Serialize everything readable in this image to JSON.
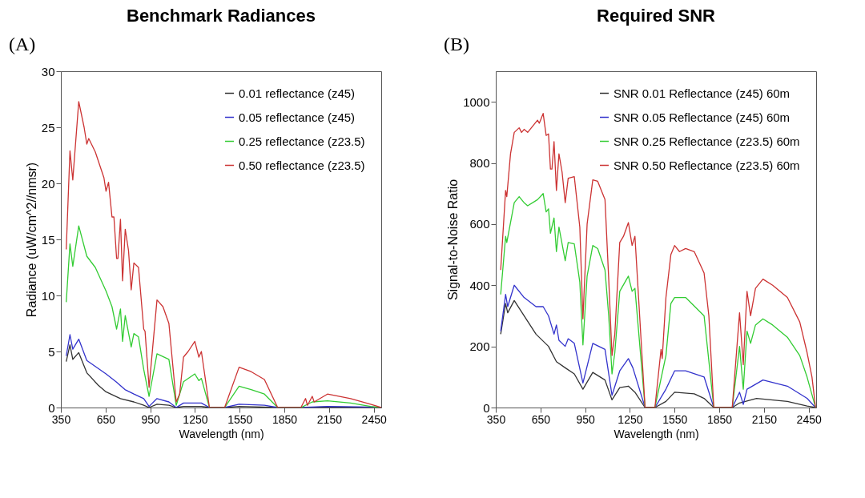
{
  "chart_data": [
    {
      "type": "line",
      "title": "Benchmark Radiances",
      "xlabel": "Wavelength (nm)",
      "ylabel": "Radiance (uW/cm^2//nmsr)",
      "annotations": [
        "(A)"
      ],
      "xlim": [
        350,
        2500
      ],
      "xticks": [
        350,
        650,
        950,
        1250,
        1550,
        1850,
        2150,
        2450
      ],
      "ylim": [
        0,
        30
      ],
      "yticks": [
        0,
        5,
        10,
        15,
        20,
        25,
        30
      ],
      "grid": false,
      "legend": "top right",
      "series": [
        {
          "name": "0.01 reflectance (z45)",
          "color": "#333333",
          "x": [
            386,
            411,
            430,
            470,
            524,
            600,
            653,
            750,
            840,
            906,
            942,
            995,
            1075,
            1124,
            1173,
            1293,
            1347,
            1449,
            1546,
            1805,
            1961,
            2139,
            2500
          ],
          "values": [
            4.1,
            5.6,
            4.3,
            4.9,
            3.1,
            2,
            1.4,
            0.8,
            0.5,
            0.2,
            0,
            0.3,
            0.2,
            0,
            0.1,
            0.1,
            0,
            0,
            0.1,
            0,
            0,
            0.05,
            0
          ]
        },
        {
          "name": "0.05 reflectance (z45)",
          "color": "#3333cc",
          "x": [
            386,
            411,
            430,
            470,
            524,
            653,
            720,
            780,
            840,
            906,
            942,
            995,
            1075,
            1124,
            1173,
            1293,
            1347,
            1449,
            1546,
            1716,
            1805,
            1961,
            2139,
            2428,
            2500
          ],
          "values": [
            4.6,
            6.5,
            5.2,
            6.1,
            4.2,
            3,
            2.3,
            1.6,
            1.2,
            0.8,
            0.1,
            0.8,
            0.5,
            0,
            0.4,
            0.4,
            0,
            0,
            0.3,
            0.2,
            0,
            0,
            0.1,
            0.05,
            0
          ]
        },
        {
          "name": "0.25 reflectance (z23.5)",
          "color": "#33cc33",
          "x": [
            386,
            411,
            430,
            470,
            524,
            581,
            653,
            693,
            724,
            750,
            764,
            782,
            822,
            840,
            871,
            906,
            942,
            995,
            1075,
            1124,
            1173,
            1249,
            1276,
            1293,
            1347,
            1449,
            1546,
            1627,
            1716,
            1805,
            1961,
            2037,
            2139,
            2295,
            2428,
            2500
          ],
          "values": [
            9.4,
            14.6,
            12.6,
            16.2,
            13.5,
            12.5,
            10.4,
            9,
            7,
            8.8,
            5.9,
            8.2,
            5.4,
            6.6,
            6.3,
            3.4,
            1,
            4.8,
            4.3,
            0.2,
            2.3,
            3,
            2.4,
            2.6,
            0,
            0,
            1.9,
            1.6,
            1.2,
            0,
            0,
            0.5,
            0.6,
            0.4,
            0.1,
            0
          ]
        },
        {
          "name": "0.50 reflectance (z23.5)",
          "color": "#cc3333",
          "x": [
            386,
            411,
            430,
            470,
            506,
            524,
            537,
            581,
            639,
            653,
            670,
            693,
            706,
            724,
            733,
            750,
            764,
            782,
            804,
            822,
            840,
            871,
            906,
            915,
            942,
            995,
            1035,
            1075,
            1124,
            1147,
            1173,
            1204,
            1249,
            1276,
            1293,
            1347,
            1449,
            1546,
            1627,
            1716,
            1805,
            1961,
            1992,
            2005,
            2037,
            2050,
            2139,
            2295,
            2428,
            2500
          ],
          "values": [
            14.1,
            22.9,
            20.3,
            27.3,
            25,
            23.5,
            24,
            22.8,
            20.5,
            19.3,
            20.1,
            17,
            17,
            13.3,
            13.3,
            16.8,
            11.3,
            15.9,
            14,
            10.5,
            12.9,
            12.5,
            7,
            6.8,
            1.8,
            9.6,
            9,
            7.5,
            0.5,
            1.2,
            4.5,
            5,
            5.9,
            4.5,
            5,
            0,
            0,
            3.6,
            3.2,
            2.5,
            0,
            0,
            0.8,
            0.2,
            1,
            0.5,
            1.2,
            0.8,
            0.3,
            0
          ]
        }
      ]
    },
    {
      "type": "line",
      "title": "Required SNR",
      "xlabel": "Wavelength (nm)",
      "ylabel": "Signal-to-Noise Ratio",
      "annotations": [
        "(B)"
      ],
      "xlim": [
        350,
        2500
      ],
      "xticks": [
        350,
        650,
        950,
        1250,
        1550,
        1850,
        2150,
        2450
      ],
      "ylim": [
        0,
        1100
      ],
      "yticks": [
        0,
        200,
        400,
        600,
        800,
        1000
      ],
      "grid": false,
      "legend": "top right",
      "series": [
        {
          "name": "SNR 0.01 Reflectance (z45) 60m",
          "color": "#333333",
          "x": [
            383,
            416,
            430,
            474,
            540,
            620,
            704,
            757,
            816,
            877,
            935,
            1001,
            1083,
            1130,
            1182,
            1240,
            1284,
            1352,
            1418,
            1492,
            1550,
            1682,
            1748,
            1813,
            1937,
            1986,
            2100,
            2307,
            2439,
            2496
          ],
          "values": [
            240,
            340,
            310,
            350,
            300,
            240,
            200,
            150,
            130,
            110,
            60,
            115,
            90,
            25,
            65,
            70,
            50,
            0,
            0,
            20,
            50,
            45,
            30,
            0,
            0,
            15,
            30,
            20,
            5,
            0
          ]
        },
        {
          "name": "SNR 0.05 Reflectance (z45) 60m",
          "color": "#3333cc",
          "x": [
            383,
            416,
            430,
            474,
            540,
            620,
            668,
            704,
            741,
            757,
            774,
            816,
            836,
            877,
            935,
            1001,
            1083,
            1130,
            1182,
            1240,
            1270,
            1352,
            1418,
            1492,
            1550,
            1624,
            1748,
            1813,
            1937,
            1986,
            2011,
            2036,
            2143,
            2307,
            2439,
            2496
          ],
          "values": [
            250,
            370,
            330,
            400,
            360,
            330,
            330,
            300,
            240,
            270,
            220,
            200,
            225,
            210,
            80,
            210,
            190,
            40,
            120,
            160,
            130,
            0,
            0,
            60,
            120,
            120,
            100,
            0,
            0,
            50,
            10,
            60,
            90,
            70,
            30,
            0
          ]
        },
        {
          "name": "SNR 0.25 Reflectance (z23.5) 60m",
          "color": "#33cc33",
          "x": [
            383,
            416,
            424,
            474,
            507,
            540,
            564,
            630,
            668,
            688,
            704,
            717,
            741,
            757,
            774,
            816,
            836,
            877,
            914,
            935,
            963,
            1001,
            1034,
            1083,
            1108,
            1130,
            1149,
            1182,
            1240,
            1265,
            1284,
            1352,
            1418,
            1492,
            1525,
            1550,
            1624,
            1748,
            1813,
            1937,
            1986,
            2011,
            2036,
            2060,
            2093,
            2143,
            2208,
            2307,
            2390,
            2439,
            2496
          ],
          "values": [
            370,
            560,
            540,
            670,
            690,
            670,
            660,
            680,
            700,
            640,
            650,
            570,
            620,
            510,
            590,
            480,
            540,
            535,
            410,
            205,
            430,
            530,
            520,
            450,
            300,
            110,
            180,
            380,
            430,
            380,
            390,
            0,
            0,
            170,
            340,
            360,
            360,
            300,
            0,
            0,
            200,
            60,
            250,
            210,
            270,
            290,
            270,
            230,
            170,
            100,
            0
          ]
        },
        {
          "name": "SNR 0.50 Reflectance (z23.5) 60m",
          "color": "#cc3333",
          "x": [
            383,
            416,
            424,
            449,
            474,
            507,
            523,
            540,
            564,
            605,
            630,
            642,
            668,
            688,
            704,
            717,
            727,
            741,
            757,
            774,
            795,
            816,
            836,
            877,
            914,
            935,
            963,
            1001,
            1034,
            1083,
            1108,
            1130,
            1149,
            1182,
            1207,
            1240,
            1265,
            1284,
            1352,
            1418,
            1459,
            1467,
            1492,
            1525,
            1550,
            1583,
            1624,
            1682,
            1748,
            1780,
            1813,
            1937,
            1986,
            2011,
            2036,
            2060,
            2093,
            2143,
            2208,
            2307,
            2390,
            2439,
            2472,
            2496
          ],
          "values": [
            450,
            710,
            690,
            830,
            900,
            915,
            900,
            910,
            900,
            925,
            940,
            930,
            962,
            890,
            895,
            780,
            780,
            870,
            710,
            830,
            770,
            670,
            750,
            755,
            590,
            290,
            600,
            745,
            740,
            680,
            420,
            170,
            240,
            540,
            560,
            605,
            530,
            560,
            0,
            0,
            190,
            160,
            360,
            500,
            530,
            510,
            520,
            510,
            440,
            300,
            0,
            0,
            310,
            140,
            380,
            300,
            390,
            420,
            400,
            360,
            280,
            180,
            100,
            0
          ]
        }
      ]
    }
  ]
}
